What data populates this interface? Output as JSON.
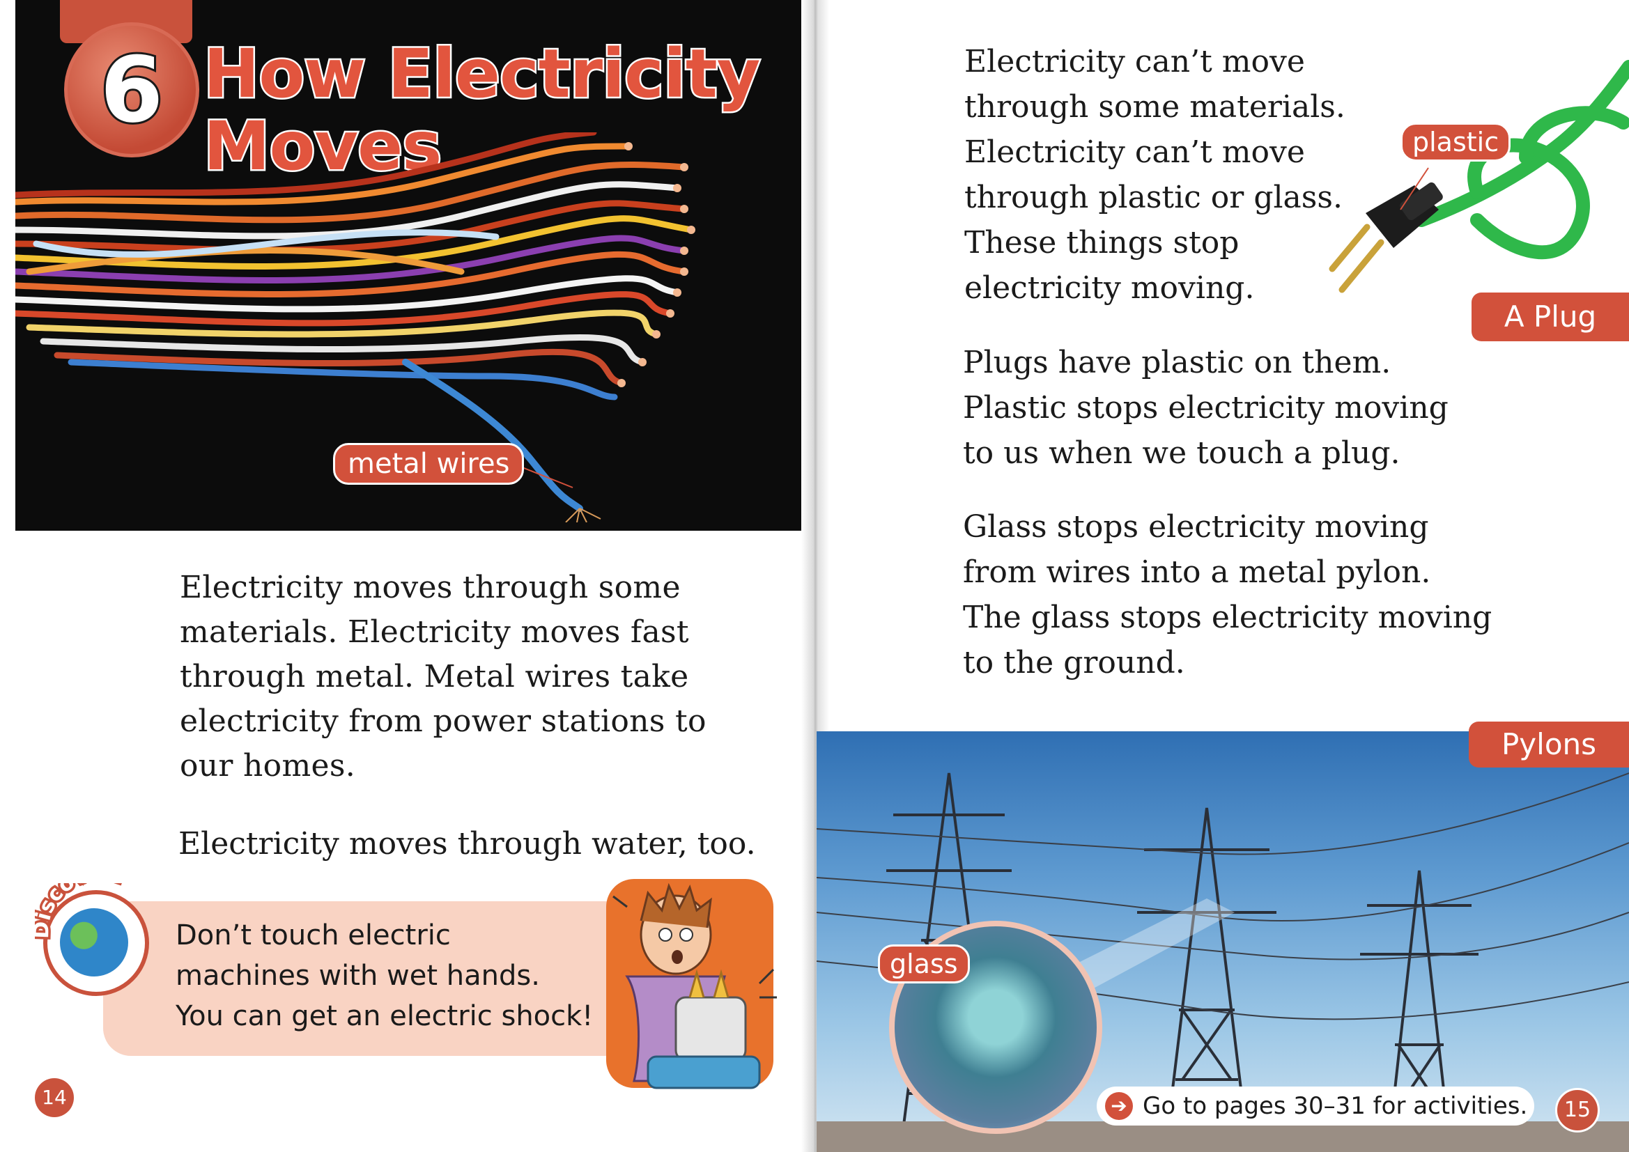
{
  "left_page": {
    "chapter_number": "6",
    "chapter_title": "How Electricity\nMoves",
    "photo_label": "metal wires",
    "paragraph_1": "Electricity moves through some\nmaterials. Electricity moves fast\nthrough metal. Metal wires take\nelectricity from power stations to\nour homes.",
    "paragraph_2": "Electricity moves through water, too.",
    "discover": {
      "badge_text": "Discover!",
      "text": "Don’t touch electric\nmachines with wet hands.\nYou can get an electric shock!"
    },
    "page_number": "14"
  },
  "right_page": {
    "paragraph_1": "Electricity can’t move\nthrough some materials.\nElectricity can’t move\nthrough plastic or glass.\nThese things stop\nelectricity moving.",
    "paragraph_2": "Plugs have plastic on them.\nPlastic stops electricity moving\nto us when we touch a plug.",
    "paragraph_3": "Glass stops electricity moving\nfrom wires into a metal pylon.\nThe glass stops electricity moving\nto the ground.",
    "plug_labels": {
      "plastic": "plastic",
      "caption": "A Plug"
    },
    "pylons_label": "Pylons",
    "glass_label": "glass",
    "activity_note": "Go to pages 30–31 for activities.",
    "page_number": "15"
  },
  "colors": {
    "accent": "#d2513b",
    "discover_box": "#f9d3c3",
    "photo_bg": "#0c0c0c",
    "cable_green": "#2fb84a"
  },
  "icons": [
    "globe-icon",
    "arrow-right-icon"
  ]
}
